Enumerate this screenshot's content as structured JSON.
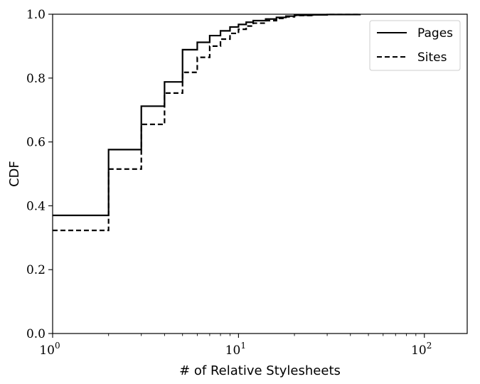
{
  "chart_data": {
    "type": "line",
    "xlabel": "# of Relative Stylesheets",
    "ylabel": "CDF",
    "xscale": "log",
    "xlim": [
      1,
      170
    ],
    "ylim": [
      0.0,
      1.0
    ],
    "x_ticks": [
      {
        "value": 1,
        "base": "10",
        "exp": "0"
      },
      {
        "value": 10,
        "base": "10",
        "exp": "1"
      },
      {
        "value": 100,
        "base": "10",
        "exp": "2"
      }
    ],
    "y_ticks": [
      {
        "value": 0.0,
        "label": "0.0"
      },
      {
        "value": 0.2,
        "label": "0.2"
      },
      {
        "value": 0.4,
        "label": "0.4"
      },
      {
        "value": 0.6,
        "label": "0.6"
      },
      {
        "value": 0.8,
        "label": "0.8"
      },
      {
        "value": 1.0,
        "label": "1.0"
      }
    ],
    "grid": false,
    "legend_position": "top-right",
    "series": [
      {
        "name": "Pages",
        "style": "solid",
        "color": "#000000",
        "step_x": [
          1,
          2,
          3,
          4,
          5,
          6,
          7,
          8,
          9,
          10,
          11,
          12,
          14,
          16,
          18,
          20,
          25,
          30,
          45
        ],
        "step_y": [
          0.37,
          0.576,
          0.712,
          0.788,
          0.889,
          0.912,
          0.933,
          0.948,
          0.96,
          0.968,
          0.975,
          0.98,
          0.985,
          0.99,
          0.994,
          0.997,
          0.998,
          0.999,
          1.0
        ]
      },
      {
        "name": "Sites",
        "style": "dashed",
        "color": "#000000",
        "step_x": [
          1,
          2,
          3,
          4,
          5,
          6,
          7,
          8,
          9,
          10,
          11,
          12,
          14,
          16,
          18,
          20,
          25,
          30,
          45
        ],
        "step_y": [
          0.323,
          0.515,
          0.655,
          0.753,
          0.818,
          0.865,
          0.9,
          0.922,
          0.94,
          0.953,
          0.963,
          0.972,
          0.98,
          0.987,
          0.992,
          0.996,
          0.998,
          0.999,
          1.0
        ]
      }
    ]
  }
}
